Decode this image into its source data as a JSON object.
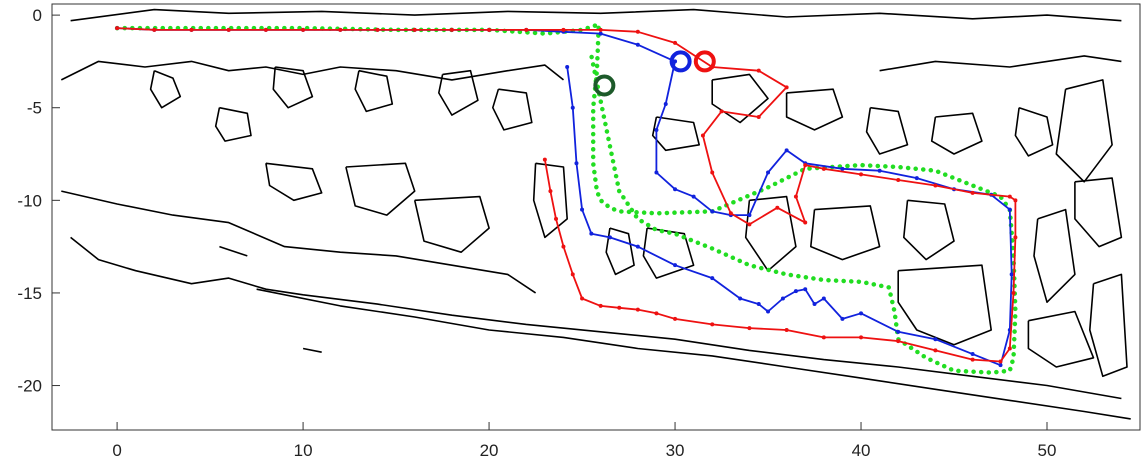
{
  "chart_data": {
    "type": "line",
    "title": "",
    "xlabel": "",
    "ylabel": "",
    "xlim": [
      -3.5,
      55
    ],
    "ylim": [
      -22.4,
      0.6
    ],
    "x_ticks": [
      0,
      10,
      20,
      30,
      40,
      50
    ],
    "y_ticks": [
      0,
      -5,
      -10,
      -15,
      -20
    ],
    "grid": false,
    "colors": {
      "red": "#ee1111",
      "blue": "#1122dd",
      "green": "#22dd22",
      "dark_green": "#1d5a2a",
      "map": "#000000"
    },
    "series": [
      {
        "color": "red",
        "style": "solid-dotted",
        "x": [
          23.0,
          23.3,
          23.6,
          24.0,
          24.5,
          25.0,
          26.0,
          27.0,
          28.0,
          29.0,
          30.0,
          32.0,
          34.0,
          36.0,
          38.0,
          40.0,
          42.0,
          44.0,
          46.0,
          47.5,
          48.0,
          48.2,
          48.3,
          48.3,
          48.0,
          46.0,
          44.0,
          42.0,
          40.0,
          38.0,
          37.0,
          36.5,
          37.0,
          35.5,
          34.0,
          33.0,
          32.0,
          31.5,
          32.5,
          34.5,
          36.0,
          34.5,
          32.0,
          30.0,
          28.0,
          26.0,
          24.0,
          22.0,
          20.0,
          18.0,
          16.0,
          14.0,
          12.0,
          10.0,
          8.0,
          6.0,
          4.0,
          2.0,
          0.0
        ],
        "y": [
          -7.8,
          -9.5,
          -11.0,
          -12.5,
          -14.0,
          -15.3,
          -15.7,
          -15.8,
          -15.9,
          -16.1,
          -16.4,
          -16.7,
          -16.9,
          -17.0,
          -17.4,
          -17.4,
          -17.6,
          -18.1,
          -18.6,
          -18.7,
          -18.0,
          -15.0,
          -12.0,
          -10.0,
          -9.8,
          -9.6,
          -9.2,
          -8.9,
          -8.6,
          -8.3,
          -8.1,
          -9.8,
          -11.2,
          -10.4,
          -11.3,
          -10.7,
          -8.5,
          -6.5,
          -5.2,
          -5.5,
          -3.9,
          -3.0,
          -2.8,
          -1.5,
          -0.9,
          -0.8,
          -0.8,
          -0.8,
          -0.8,
          -0.8,
          -0.8,
          -0.8,
          -0.8,
          -0.8,
          -0.8,
          -0.8,
          -0.8,
          -0.8,
          -0.7
        ]
      },
      {
        "color": "blue",
        "style": "solid-dotted",
        "x": [
          24.2,
          24.5,
          24.7,
          25.0,
          25.5,
          26.5,
          28.0,
          30.0,
          32.0,
          33.5,
          34.5,
          35.0,
          35.8,
          36.5,
          37.0,
          37.5,
          38.0,
          39.0,
          40.0,
          42.0,
          44.0,
          46.0,
          47.5,
          48.0,
          48.1,
          48.0,
          47.0,
          45.0,
          43.0,
          41.0,
          39.0,
          37.0,
          36.0,
          35.0,
          34.0,
          33.0,
          32.0,
          31.0,
          30.0,
          29.0,
          29.0,
          29.5,
          30.0,
          28.0,
          26.0,
          24.0,
          22.0,
          20.0,
          18.0,
          16.0,
          14.0,
          12.0,
          10.0,
          8.0,
          6.0,
          4.0,
          2.0,
          0.0
        ],
        "y": [
          -2.8,
          -5.0,
          -8.0,
          -10.5,
          -11.8,
          -12.0,
          -12.5,
          -13.5,
          -14.2,
          -15.3,
          -15.6,
          -16.0,
          -15.3,
          -14.9,
          -14.8,
          -15.6,
          -15.3,
          -16.4,
          -16.1,
          -17.1,
          -17.5,
          -18.3,
          -18.9,
          -17.0,
          -14.0,
          -10.5,
          -9.7,
          -9.4,
          -8.8,
          -8.4,
          -8.3,
          -8.0,
          -7.3,
          -8.5,
          -10.8,
          -10.8,
          -10.6,
          -9.8,
          -9.4,
          -8.5,
          -6.2,
          -4.8,
          -2.5,
          -1.6,
          -1.0,
          -0.9,
          -0.8,
          -0.8,
          -0.8,
          -0.8,
          -0.8,
          -0.8,
          -0.8,
          -0.8,
          -0.8,
          -0.8,
          -0.8,
          -0.7
        ]
      },
      {
        "color": "green",
        "style": "dotted",
        "x": [
          0.0,
          5.0,
          10.0,
          15.0,
          20.0,
          23.0,
          25.0,
          25.9,
          25.8,
          25.6,
          25.6,
          25.8,
          26.0,
          26.5,
          27.0,
          29.0,
          32.0,
          35.0,
          37.0,
          40.0,
          42.0,
          44.0,
          46.0,
          47.5,
          48.0,
          48.2,
          48.3,
          48.2,
          48.0,
          47.0,
          45.0,
          43.5,
          42.0,
          41.8,
          41.5,
          40.0,
          38.0,
          36.0,
          34.0,
          32.0,
          30.0,
          29.0,
          28.0,
          27.0,
          25.5
        ],
        "y": [
          -0.7,
          -0.7,
          -0.7,
          -0.8,
          -0.8,
          -1.0,
          -0.8,
          -0.5,
          -3.0,
          -5.0,
          -8.0,
          -9.5,
          -10.0,
          -10.4,
          -10.6,
          -10.7,
          -10.6,
          -9.3,
          -8.3,
          -8.1,
          -8.2,
          -8.4,
          -9.2,
          -9.8,
          -10.5,
          -13.0,
          -16.0,
          -18.5,
          -19.2,
          -19.3,
          -19.2,
          -18.5,
          -17.5,
          -16.0,
          -14.7,
          -14.4,
          -14.3,
          -14.0,
          -13.5,
          -12.6,
          -11.8,
          -11.6,
          -11.0,
          -9.5,
          -2.2
        ]
      }
    ],
    "markers": [
      {
        "color": "blue",
        "x": 30.3,
        "y": -2.5
      },
      {
        "color": "red",
        "x": 31.6,
        "y": -2.5
      },
      {
        "color": "dark_green",
        "x": 26.2,
        "y": -3.8
      }
    ],
    "map_outlines": [
      [
        [
          -2.5,
          -0.3
        ],
        [
          2.0,
          0.3
        ],
        [
          6.0,
          0.1
        ],
        [
          11.0,
          0.2
        ],
        [
          16.0,
          0.0
        ],
        [
          21.0,
          0.2
        ],
        [
          26.0,
          0.1
        ],
        [
          31.0,
          0.3
        ],
        [
          36.0,
          -0.1
        ],
        [
          41.0,
          0.1
        ],
        [
          46.0,
          -0.2
        ],
        [
          50.0,
          0.0
        ],
        [
          54.0,
          -0.3
        ]
      ],
      [
        [
          -3.0,
          -3.5
        ],
        [
          -1.0,
          -2.5
        ],
        [
          1.5,
          -2.8
        ],
        [
          4.0,
          -2.5
        ],
        [
          6.0,
          -3.0
        ],
        [
          8.0,
          -2.8
        ],
        [
          10.0,
          -3.2
        ],
        [
          12.0,
          -2.8
        ],
        [
          15.0,
          -3.0
        ],
        [
          18.0,
          -3.5
        ],
        [
          21.0,
          -3.0
        ],
        [
          23.0,
          -2.7
        ],
        [
          24.0,
          -3.5
        ]
      ],
      [
        [
          -3.0,
          -9.5
        ],
        [
          0.0,
          -10.2
        ],
        [
          3.0,
          -10.8
        ],
        [
          6.0,
          -11.2
        ],
        [
          9.0,
          -12.5
        ],
        [
          12.0,
          -12.8
        ],
        [
          15.0,
          -13.0
        ],
        [
          18.0,
          -13.5
        ],
        [
          21.0,
          -14.0
        ],
        [
          22.5,
          -15.0
        ]
      ],
      [
        [
          -2.5,
          -12.0
        ],
        [
          -1.0,
          -13.2
        ],
        [
          1.0,
          -13.8
        ],
        [
          4.0,
          -14.5
        ],
        [
          6.0,
          -14.2
        ],
        [
          8.0,
          -14.8
        ],
        [
          10.0,
          -15.1
        ],
        [
          14.0,
          -15.6
        ],
        [
          18.0,
          -16.2
        ],
        [
          22.0,
          -16.7
        ],
        [
          26.0,
          -17.1
        ],
        [
          30.0,
          -17.5
        ],
        [
          34.0,
          -18.1
        ],
        [
          38.0,
          -18.6
        ],
        [
          42.0,
          -19.0
        ],
        [
          46.0,
          -19.5
        ],
        [
          50.0,
          -20.0
        ],
        [
          54.0,
          -20.7
        ]
      ],
      [
        [
          7.5,
          -14.8
        ],
        [
          12.0,
          -15.7
        ],
        [
          16.0,
          -16.3
        ],
        [
          20.0,
          -17.0
        ],
        [
          24.0,
          -17.4
        ],
        [
          28.0,
          -18.0
        ],
        [
          32.0,
          -18.4
        ],
        [
          36.0,
          -19.0
        ],
        [
          40.0,
          -19.6
        ],
        [
          44.0,
          -20.2
        ],
        [
          48.0,
          -20.8
        ],
        [
          52.0,
          -21.4
        ],
        [
          54.5,
          -21.8
        ]
      ],
      [
        [
          8.0,
          -8.0
        ],
        [
          10.5,
          -8.3
        ],
        [
          11.0,
          -9.6
        ],
        [
          9.5,
          -10.0
        ],
        [
          8.2,
          -9.2
        ],
        [
          8.0,
          -8.0
        ]
      ],
      [
        [
          12.3,
          -8.2
        ],
        [
          15.5,
          -8.0
        ],
        [
          16.0,
          -9.5
        ],
        [
          14.5,
          -10.8
        ],
        [
          12.8,
          -10.3
        ],
        [
          12.3,
          -8.2
        ]
      ],
      [
        [
          16.0,
          -10.0
        ],
        [
          19.5,
          -9.8
        ],
        [
          20.0,
          -11.5
        ],
        [
          18.5,
          -12.8
        ],
        [
          16.5,
          -12.2
        ],
        [
          16.0,
          -10.0
        ]
      ],
      [
        [
          22.5,
          -8.0
        ],
        [
          24.0,
          -8.2
        ],
        [
          24.2,
          -11.0
        ],
        [
          23.0,
          -12.0
        ],
        [
          22.4,
          -10.0
        ],
        [
          22.5,
          -8.0
        ]
      ],
      [
        [
          2.0,
          -3.0
        ],
        [
          3.0,
          -3.4
        ],
        [
          3.4,
          -4.4
        ],
        [
          2.4,
          -5.0
        ],
        [
          1.8,
          -4.0
        ],
        [
          2.0,
          -3.0
        ]
      ],
      [
        [
          8.5,
          -2.8
        ],
        [
          10.0,
          -3.0
        ],
        [
          10.5,
          -4.4
        ],
        [
          9.2,
          -5.0
        ],
        [
          8.4,
          -4.0
        ],
        [
          8.5,
          -2.8
        ]
      ],
      [
        [
          13.0,
          -3.0
        ],
        [
          14.5,
          -3.3
        ],
        [
          14.8,
          -4.8
        ],
        [
          13.4,
          -5.2
        ],
        [
          12.8,
          -4.0
        ],
        [
          13.0,
          -3.0
        ]
      ],
      [
        [
          17.5,
          -3.2
        ],
        [
          19.0,
          -3.0
        ],
        [
          19.4,
          -4.6
        ],
        [
          18.0,
          -5.4
        ],
        [
          17.3,
          -4.2
        ],
        [
          17.5,
          -3.2
        ]
      ],
      [
        [
          32.0,
          -3.5
        ],
        [
          34.0,
          -3.2
        ],
        [
          35.0,
          -4.5
        ],
        [
          33.5,
          -5.8
        ],
        [
          32.0,
          -4.8
        ],
        [
          32.0,
          -3.5
        ]
      ],
      [
        [
          36.0,
          -4.2
        ],
        [
          38.5,
          -4.0
        ],
        [
          39.0,
          -5.5
        ],
        [
          37.5,
          -6.2
        ],
        [
          36.0,
          -5.5
        ],
        [
          36.0,
          -4.2
        ]
      ],
      [
        [
          41.0,
          -3.0
        ],
        [
          44.0,
          -2.5
        ],
        [
          48.0,
          -2.8
        ],
        [
          52.0,
          -2.2
        ],
        [
          54.0,
          -2.5
        ]
      ],
      [
        [
          40.5,
          -5.0
        ],
        [
          42.0,
          -5.2
        ],
        [
          42.5,
          -7.0
        ],
        [
          41.0,
          -7.5
        ],
        [
          40.3,
          -6.3
        ],
        [
          40.5,
          -5.0
        ]
      ],
      [
        [
          44.0,
          -5.5
        ],
        [
          46.0,
          -5.3
        ],
        [
          46.5,
          -6.8
        ],
        [
          45.0,
          -7.5
        ],
        [
          43.8,
          -6.8
        ],
        [
          44.0,
          -5.5
        ]
      ],
      [
        [
          48.5,
          -5.0
        ],
        [
          50.0,
          -5.5
        ],
        [
          50.3,
          -7.0
        ],
        [
          49.0,
          -7.6
        ],
        [
          48.3,
          -6.5
        ],
        [
          48.5,
          -5.0
        ]
      ],
      [
        [
          51.0,
          -4.0
        ],
        [
          53.0,
          -3.5
        ],
        [
          53.5,
          -7.0
        ],
        [
          52.0,
          -9.0
        ],
        [
          50.5,
          -7.5
        ],
        [
          51.0,
          -4.0
        ]
      ],
      [
        [
          34.0,
          -10.0
        ],
        [
          36.0,
          -9.8
        ],
        [
          36.5,
          -12.5
        ],
        [
          35.0,
          -13.8
        ],
        [
          33.8,
          -12.0
        ],
        [
          34.0,
          -10.0
        ]
      ],
      [
        [
          37.5,
          -10.5
        ],
        [
          40.5,
          -10.3
        ],
        [
          41.0,
          -12.5
        ],
        [
          39.0,
          -13.2
        ],
        [
          37.3,
          -12.5
        ],
        [
          37.5,
          -10.5
        ]
      ],
      [
        [
          42.5,
          -10.0
        ],
        [
          44.5,
          -10.2
        ],
        [
          45.0,
          -12.2
        ],
        [
          43.5,
          -13.2
        ],
        [
          42.3,
          -12.0
        ],
        [
          42.5,
          -10.0
        ]
      ],
      [
        [
          42.0,
          -13.8
        ],
        [
          46.5,
          -13.5
        ],
        [
          47.0,
          -17.0
        ],
        [
          45.0,
          -17.8
        ],
        [
          43.0,
          -17.0
        ],
        [
          42.0,
          -15.5
        ],
        [
          42.0,
          -13.8
        ]
      ],
      [
        [
          29.0,
          -5.5
        ],
        [
          31.0,
          -5.8
        ],
        [
          31.3,
          -7.0
        ],
        [
          29.5,
          -7.3
        ],
        [
          28.8,
          -6.5
        ],
        [
          29.0,
          -5.5
        ]
      ],
      [
        [
          28.5,
          -11.5
        ],
        [
          30.5,
          -11.8
        ],
        [
          31.0,
          -13.5
        ],
        [
          29.0,
          -14.2
        ],
        [
          28.3,
          -13.0
        ],
        [
          28.5,
          -11.5
        ]
      ],
      [
        [
          49.5,
          -11.0
        ],
        [
          51.0,
          -10.5
        ],
        [
          51.5,
          -14.0
        ],
        [
          50.0,
          -15.5
        ],
        [
          49.3,
          -13.0
        ],
        [
          49.5,
          -11.0
        ]
      ],
      [
        [
          51.5,
          -9.0
        ],
        [
          53.5,
          -8.8
        ],
        [
          54.0,
          -12.0
        ],
        [
          52.8,
          -12.5
        ],
        [
          51.5,
          -11.0
        ],
        [
          51.5,
          -9.0
        ]
      ],
      [
        [
          49.0,
          -16.5
        ],
        [
          51.5,
          -16.0
        ],
        [
          52.5,
          -18.5
        ],
        [
          50.5,
          -19.0
        ],
        [
          49.0,
          -18.0
        ],
        [
          49.0,
          -16.5
        ]
      ],
      [
        [
          52.5,
          -14.5
        ],
        [
          54.0,
          -14.0
        ],
        [
          54.3,
          -19.0
        ],
        [
          53.0,
          -19.5
        ],
        [
          52.3,
          -17.0
        ],
        [
          52.5,
          -14.5
        ]
      ],
      [
        [
          5.5,
          -5.0
        ],
        [
          7.0,
          -5.3
        ],
        [
          7.2,
          -6.5
        ],
        [
          5.8,
          -6.8
        ],
        [
          5.3,
          -6.0
        ],
        [
          5.5,
          -5.0
        ]
      ],
      [
        [
          20.5,
          -4.0
        ],
        [
          22.0,
          -4.2
        ],
        [
          22.3,
          -5.8
        ],
        [
          20.8,
          -6.2
        ],
        [
          20.2,
          -5.0
        ],
        [
          20.5,
          -4.0
        ]
      ],
      [
        [
          26.5,
          -11.5
        ],
        [
          27.5,
          -11.8
        ],
        [
          27.8,
          -13.5
        ],
        [
          26.8,
          -14.0
        ],
        [
          26.3,
          -12.8
        ],
        [
          26.5,
          -11.5
        ]
      ],
      [
        [
          10.0,
          -18.0
        ],
        [
          11.0,
          -18.2
        ]
      ],
      [
        [
          5.5,
          -12.5
        ],
        [
          7.0,
          -13.0
        ]
      ]
    ]
  }
}
